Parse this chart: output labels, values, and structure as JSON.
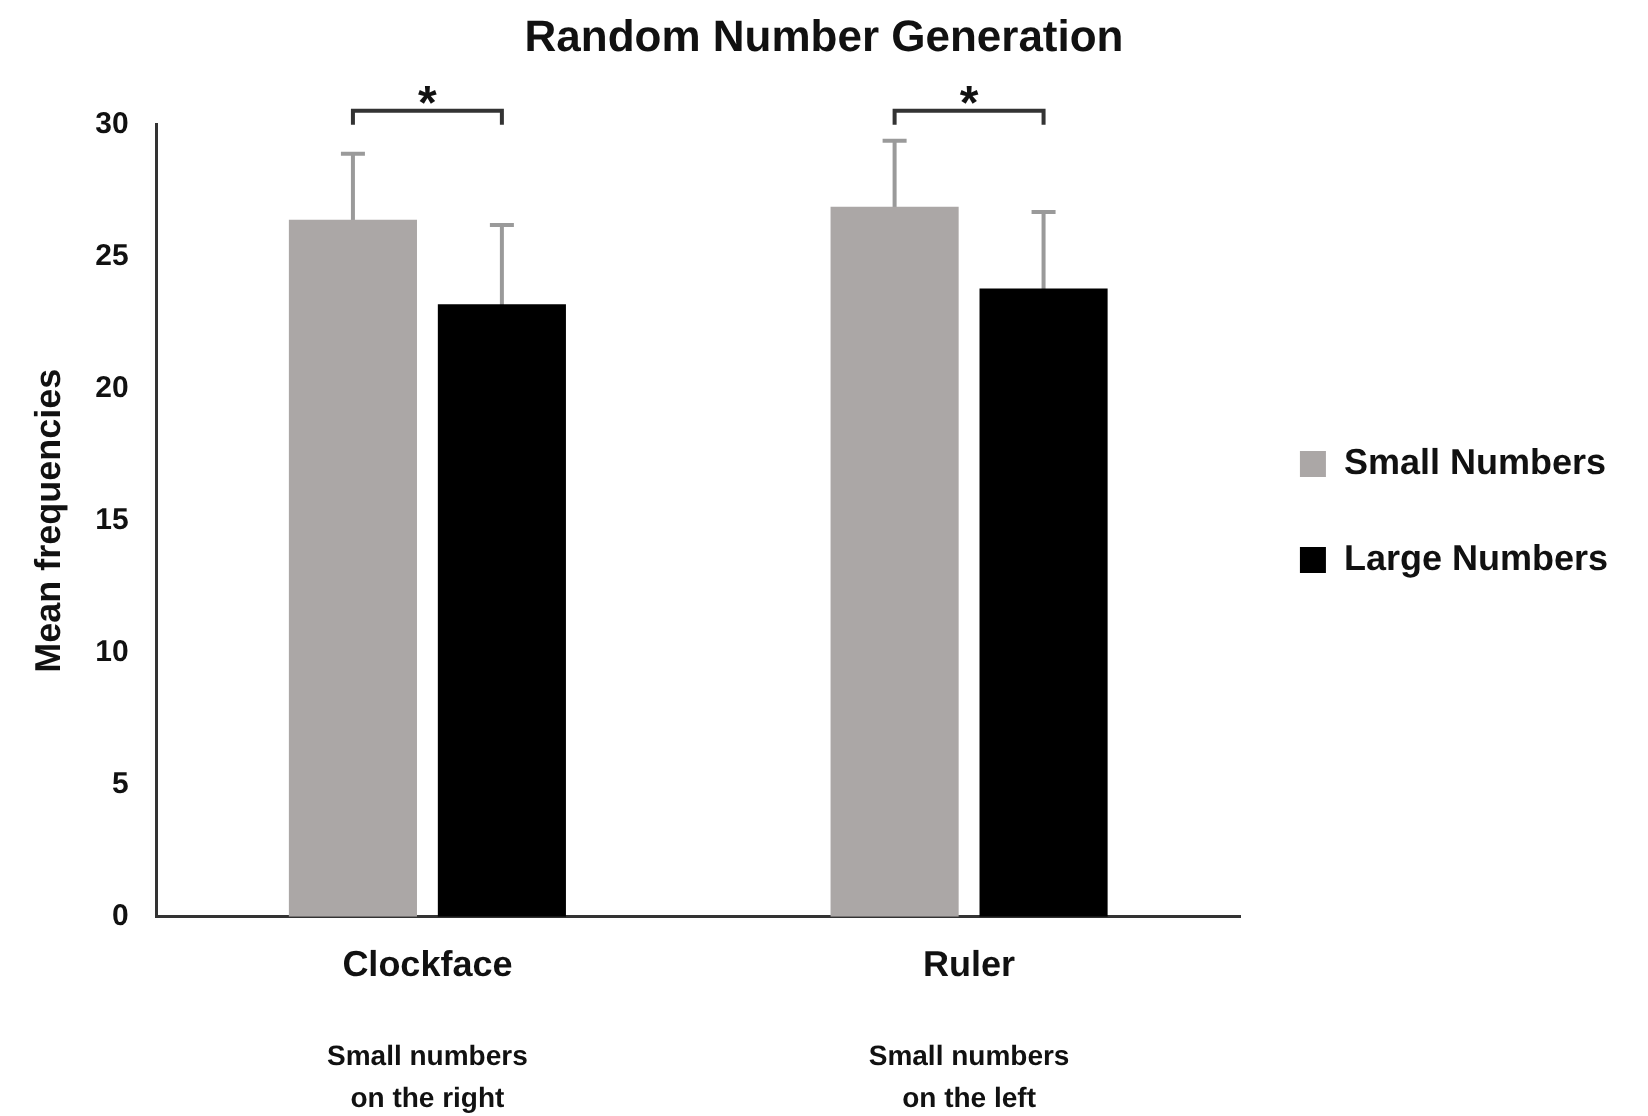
{
  "chart_data": {
    "type": "bar",
    "title": "Random Number Generation",
    "ylabel": "Mean frequencies",
    "categories": [
      "Clockface",
      "Ruler"
    ],
    "series": [
      {
        "name": "Small Numbers",
        "color": "#aba7a6",
        "values": [
          26.4,
          26.9
        ],
        "errors": [
          2.5,
          2.5
        ]
      },
      {
        "name": "Large Numbers",
        "color": "#000000",
        "values": [
          23.2,
          23.8
        ],
        "errors": [
          3.0,
          2.9
        ]
      }
    ],
    "ylim": [
      0,
      30
    ],
    "yticks": [
      0,
      5,
      10,
      15,
      20,
      25,
      30
    ],
    "grid": false,
    "legend": "right",
    "annotations": [
      "Small numbers on the right",
      "Small numbers on the left",
      "*",
      "*"
    ]
  }
}
